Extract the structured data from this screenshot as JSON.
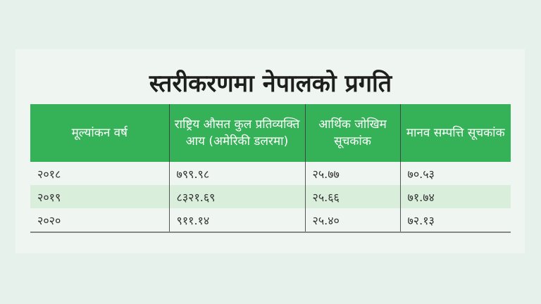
{
  "title": "स्तरीकरणमा नेपालको प्रगति",
  "colors": {
    "header": "#35b157",
    "alt_row": "#d9eedb",
    "background": "#e6f1ec"
  },
  "table": {
    "headers": [
      "मूल्यांकन वर्ष",
      "राष्ट्रिय औसत कुल प्रतिव्यक्ति आय (अमेरिकी डलरमा)",
      "आर्थिक जोखिम सूचकांक",
      "मानव सम्पत्ति सूचकांक"
    ],
    "rows": [
      [
        "२०१८",
        "७९९.९८",
        "२५.७७",
        "७०.५३"
      ],
      [
        "२०१९",
        "८३२१.६९",
        "२५.६६",
        "७१.७४"
      ],
      [
        "२०२०",
        "९११.१४",
        "२५.४०",
        "७२.१३"
      ]
    ]
  }
}
